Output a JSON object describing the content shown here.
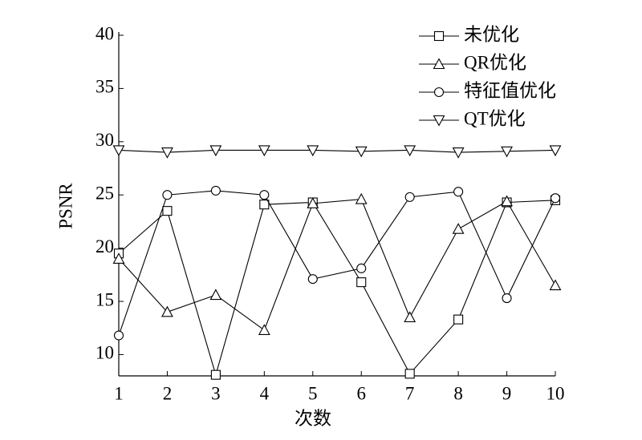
{
  "chart_data": {
    "type": "line",
    "x_label": "次数",
    "y_label": "PSNR",
    "x": [
      1,
      2,
      3,
      4,
      5,
      6,
      7,
      8,
      9,
      10
    ],
    "xlim": [
      1,
      10
    ],
    "xticks": [
      1,
      2,
      3,
      4,
      5,
      6,
      7,
      8,
      9,
      10
    ],
    "ylim": [
      8,
      40
    ],
    "yticks": [
      10,
      15,
      20,
      25,
      30,
      35,
      40
    ],
    "grid": false,
    "legend": "upper right",
    "series": [
      {
        "name": "未优化",
        "color": "#000000",
        "marker": "square",
        "values": [
          19.5,
          23.5,
          8.1,
          24.1,
          24.3,
          16.8,
          8.2,
          13.3,
          24.3,
          24.5
        ]
      },
      {
        "name": "QR优化",
        "color": "#000000",
        "marker": "triangle-up",
        "values": [
          19.0,
          14.0,
          15.6,
          12.3,
          24.2,
          24.6,
          13.5,
          21.8,
          24.4,
          16.5
        ]
      },
      {
        "name": "特征值优化",
        "color": "#000000",
        "marker": "circle",
        "values": [
          11.8,
          25.0,
          25.4,
          25.0,
          17.1,
          18.1,
          24.8,
          25.3,
          15.3,
          24.7
        ]
      },
      {
        "name": "QT优化",
        "color": "#000000",
        "marker": "triangle-down",
        "values": [
          29.2,
          29.0,
          29.2,
          29.2,
          29.2,
          29.1,
          29.2,
          29.0,
          29.1,
          29.2
        ]
      }
    ]
  }
}
